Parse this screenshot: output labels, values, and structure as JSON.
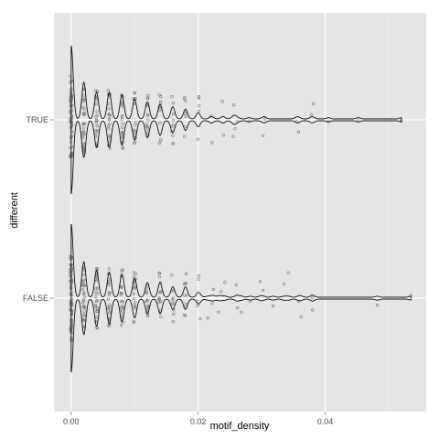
{
  "chart_data": {
    "type": "scatter",
    "subtype": "violin-with-jitter",
    "xlabel": "motif_density",
    "ylabel": "different",
    "x_ticks": [
      "0.00",
      "0.02",
      "0.04"
    ],
    "x_tick_values": [
      0.0,
      0.02,
      0.04
    ],
    "xlim": [
      -0.0027,
      0.0559
    ],
    "categories": [
      "TRUE",
      "FALSE"
    ],
    "grid": true,
    "colors": {
      "panel": "#e5e5e5",
      "grid_major": "#ffffff",
      "grid_minor": "#f2f2f2",
      "points": "#7f7f7f",
      "violin": "#111111"
    },
    "series": [
      {
        "category": "TRUE",
        "max": 0.052,
        "columns": [
          {
            "x": 0.0,
            "n": 60
          },
          {
            "x": 0.002,
            "n": 30
          },
          {
            "x": 0.004,
            "n": 22
          },
          {
            "x": 0.006,
            "n": 22
          },
          {
            "x": 0.008,
            "n": 20
          },
          {
            "x": 0.01,
            "n": 16
          },
          {
            "x": 0.012,
            "n": 14
          },
          {
            "x": 0.014,
            "n": 12
          },
          {
            "x": 0.016,
            "n": 10
          },
          {
            "x": 0.018,
            "n": 8
          },
          {
            "x": 0.02,
            "n": 5
          }
        ],
        "outliers": [
          {
            "x": 0.0222,
            "y": 0.52
          },
          {
            "x": 0.022,
            "y": -0.09
          },
          {
            "x": 0.024,
            "y": 0.35
          },
          {
            "x": 0.0238,
            "y": -0.42
          },
          {
            "x": 0.0255,
            "y": 0.38
          },
          {
            "x": 0.0258,
            "y": 0.2
          },
          {
            "x": 0.0256,
            "y": -0.34
          },
          {
            "x": 0.0262,
            "y": 0.04
          },
          {
            "x": 0.028,
            "y": 0.03
          },
          {
            "x": 0.0302,
            "y": 0.36
          },
          {
            "x": 0.0305,
            "y": -0.02
          },
          {
            "x": 0.0355,
            "y": 0.04
          },
          {
            "x": 0.0358,
            "y": 0.28
          },
          {
            "x": 0.0378,
            "y": -0.12
          },
          {
            "x": 0.0381,
            "y": -0.36
          },
          {
            "x": 0.0405,
            "y": 0.04
          },
          {
            "x": 0.0452,
            "y": 0.02
          },
          {
            "x": 0.052,
            "y": 0.02
          }
        ]
      },
      {
        "category": "FALSE",
        "max": 0.0535,
        "columns": [
          {
            "x": 0.0,
            "n": 70
          },
          {
            "x": 0.002,
            "n": 34
          },
          {
            "x": 0.004,
            "n": 26
          },
          {
            "x": 0.006,
            "n": 24
          },
          {
            "x": 0.008,
            "n": 22
          },
          {
            "x": 0.01,
            "n": 18
          },
          {
            "x": 0.012,
            "n": 14
          },
          {
            "x": 0.014,
            "n": 14
          },
          {
            "x": 0.016,
            "n": 10
          },
          {
            "x": 0.018,
            "n": 10
          },
          {
            "x": 0.02,
            "n": 4
          }
        ],
        "outliers": [
          {
            "x": 0.0203,
            "y": 0.47
          },
          {
            "x": 0.0215,
            "y": 0.45
          },
          {
            "x": 0.0222,
            "y": 0.12
          },
          {
            "x": 0.0224,
            "y": -0.2
          },
          {
            "x": 0.0232,
            "y": 0.32
          },
          {
            "x": 0.0236,
            "y": -0.15
          },
          {
            "x": 0.0242,
            "y": -0.36
          },
          {
            "x": 0.026,
            "y": -0.3
          },
          {
            "x": 0.0262,
            "y": 0.22
          },
          {
            "x": 0.0268,
            "y": 0.32
          },
          {
            "x": 0.0282,
            "y": 0.07
          },
          {
            "x": 0.0298,
            "y": -0.38
          },
          {
            "x": 0.0302,
            "y": -0.18
          },
          {
            "x": 0.0318,
            "y": 0.18
          },
          {
            "x": 0.0335,
            "y": -0.32
          },
          {
            "x": 0.0342,
            "y": -0.58
          },
          {
            "x": 0.0358,
            "y": 0.07
          },
          {
            "x": 0.0362,
            "y": 0.42
          },
          {
            "x": 0.038,
            "y": 0.27
          },
          {
            "x": 0.038,
            "y": -0.01
          },
          {
            "x": 0.0482,
            "y": 0.16
          },
          {
            "x": 0.0535,
            "y": -0.06
          }
        ]
      }
    ]
  }
}
